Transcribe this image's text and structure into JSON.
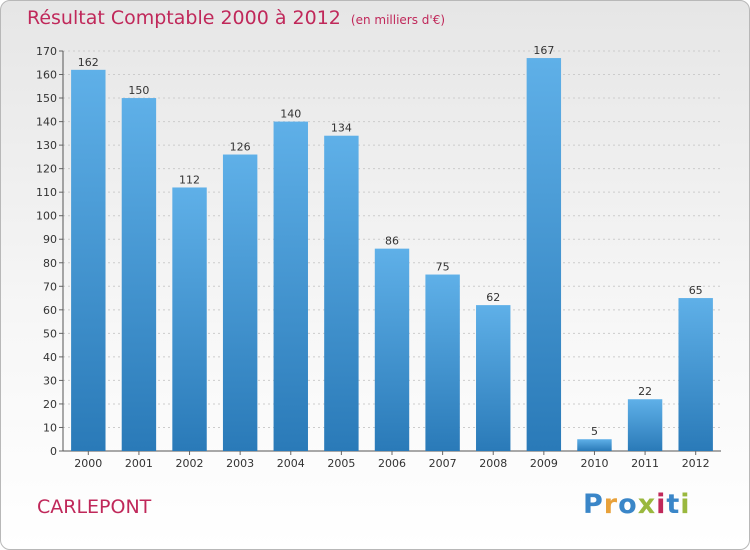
{
  "header": {
    "title": "Résultat Comptable 2000 à 2012",
    "unit": "(en milliers d'€)"
  },
  "footer": {
    "commune": "CARLEPONT",
    "logo_letters": [
      "P",
      "r",
      "o",
      "x",
      "i",
      "t",
      "i"
    ],
    "logo_colors": [
      "#3a86c8",
      "#e8a13a",
      "#3a86c8",
      "#9ab83e",
      "#c0285a",
      "#3a86c8",
      "#9ab83e"
    ]
  },
  "colors": {
    "accent": "#c0285a",
    "bar_light": "#5fb0e8",
    "bar_dark": "#2a7ab8"
  },
  "chart_data": {
    "type": "bar",
    "categories": [
      "2000",
      "2001",
      "2002",
      "2003",
      "2004",
      "2005",
      "2006",
      "2007",
      "2008",
      "2009",
      "2010",
      "2011",
      "2012"
    ],
    "values": [
      162,
      150,
      112,
      126,
      140,
      134,
      86,
      75,
      62,
      167,
      5,
      22,
      65
    ],
    "title": "Résultat Comptable 2000 à 2012",
    "ylim": [
      0,
      170
    ],
    "yticks": [
      0,
      10,
      20,
      30,
      40,
      50,
      60,
      70,
      80,
      90,
      100,
      110,
      120,
      130,
      140,
      150,
      160,
      170
    ],
    "grid": true
  }
}
